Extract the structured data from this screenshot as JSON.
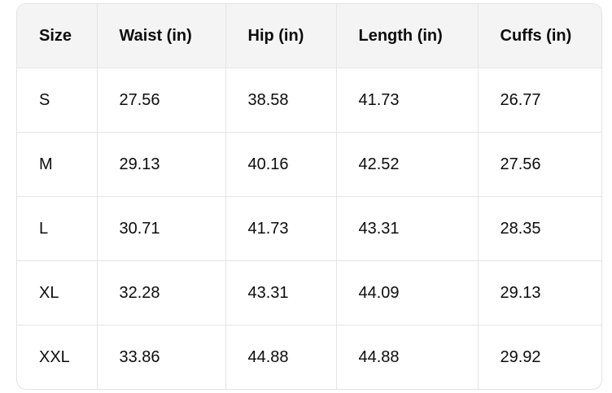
{
  "table": {
    "header": [
      "Size",
      "Waist (in)",
      "Hip (in)",
      "Length (in)",
      "Cuffs (in)"
    ],
    "rows": [
      [
        "S",
        27.56,
        38.58,
        41.73,
        26.77
      ],
      [
        "M",
        29.13,
        40.16,
        42.52,
        27.56
      ],
      [
        "L",
        30.71,
        41.73,
        43.31,
        28.35
      ],
      [
        "XL",
        32.28,
        43.31,
        44.09,
        29.13
      ],
      [
        "XXL",
        33.86,
        44.88,
        44.88,
        29.92
      ]
    ]
  }
}
